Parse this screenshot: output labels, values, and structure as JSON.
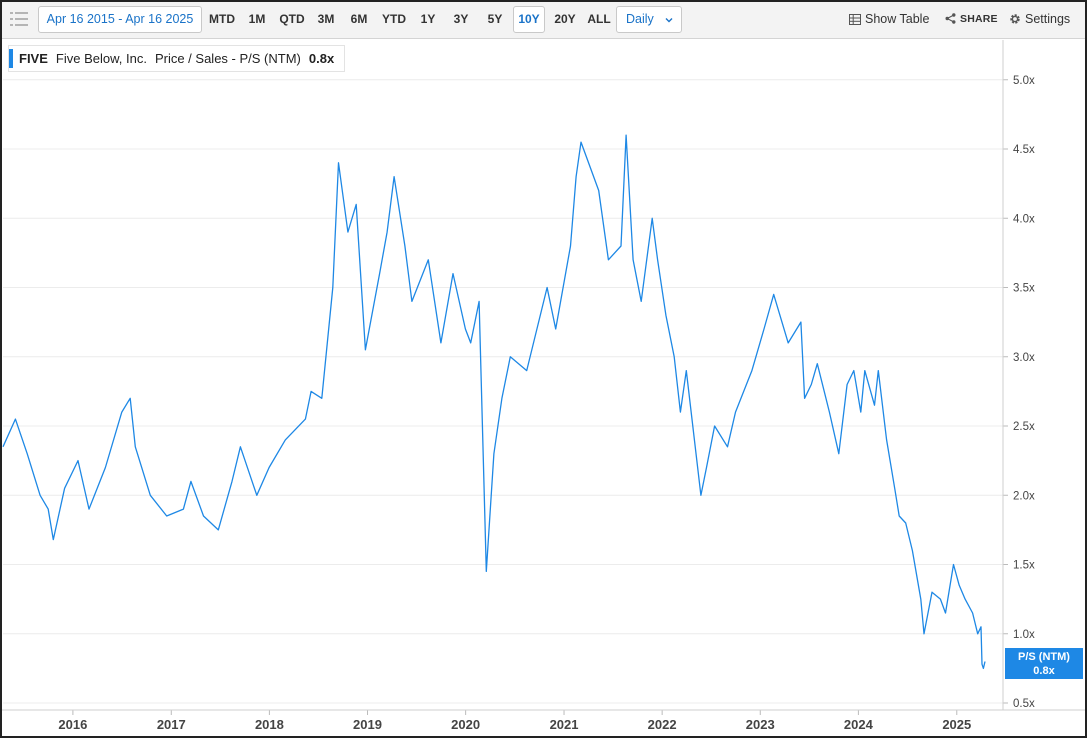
{
  "toolbar": {
    "date_range": "Apr 16 2015 - Apr 16 2025",
    "ranges": [
      "MTD",
      "1M",
      "QTD",
      "3M",
      "6M",
      "YTD",
      "1Y",
      "3Y",
      "5Y",
      "10Y",
      "20Y",
      "ALL"
    ],
    "active_range": "10Y",
    "frequency": "Daily",
    "show_table": "Show Table",
    "share": "SHARE",
    "settings": "Settings",
    "accent_color": "#1a73c8"
  },
  "legend": {
    "ticker": "FIVE",
    "company": "Five Below, Inc.",
    "metric": "Price / Sales - P/S (NTM)",
    "value": "0.8x"
  },
  "end_tag": {
    "label": "P/S (NTM)",
    "value": "0.8x"
  },
  "chart_data": {
    "type": "line",
    "title": "",
    "xlabel": "",
    "ylabel": "",
    "line_color": "#1e88e5",
    "x_ticks": [
      "2016",
      "2017",
      "2018",
      "2019",
      "2020",
      "2021",
      "2022",
      "2023",
      "2024",
      "2025"
    ],
    "y_ticks": [
      "0.5x",
      "1.0x",
      "1.5x",
      "2.0x",
      "2.5x",
      "3.0x",
      "3.5x",
      "4.0x",
      "4.5x",
      "5.0x"
    ],
    "ylim": [
      0.5,
      5.2
    ],
    "xlim": [
      "2015-04-16",
      "2025-04-16"
    ],
    "grid": "horizontal",
    "series": [
      {
        "x": [
          "2015-04-16",
          "2015-06-01",
          "2015-07-15",
          "2015-09-01",
          "2015-10-01",
          "2015-10-20",
          "2015-12-01",
          "2016-01-20",
          "2016-03-01",
          "2016-05-01",
          "2016-07-01",
          "2016-08-01",
          "2016-08-20",
          "2016-10-15",
          "2016-12-15",
          "2017-02-15",
          "2017-03-15",
          "2017-05-01",
          "2017-06-25",
          "2017-08-15",
          "2017-09-15",
          "2017-11-15",
          "2017-12-31",
          "2018-03-01",
          "2018-05-15",
          "2018-06-05",
          "2018-07-15",
          "2018-08-25",
          "2018-09-15",
          "2018-10-20",
          "2018-11-20",
          "2018-12-24",
          "2019-02-15",
          "2019-03-15",
          "2019-04-10",
          "2019-05-20",
          "2019-06-15",
          "2019-08-15",
          "2019-10-01",
          "2019-11-15",
          "2019-12-31",
          "2020-01-20",
          "2020-02-20",
          "2020-03-18",
          "2020-04-15",
          "2020-05-15",
          "2020-06-15",
          "2020-08-15",
          "2020-10-30",
          "2020-12-01",
          "2021-01-25",
          "2021-02-15",
          "2021-03-05",
          "2021-05-10",
          "2021-06-15",
          "2021-08-01",
          "2021-08-20",
          "2021-09-15",
          "2021-10-15",
          "2021-11-25",
          "2021-12-15",
          "2022-01-15",
          "2022-02-15",
          "2022-03-10",
          "2022-04-01",
          "2022-05-25",
          "2022-06-15",
          "2022-07-15",
          "2022-09-01",
          "2022-10-01",
          "2022-12-01",
          "2023-01-15",
          "2023-02-20",
          "2023-03-15",
          "2023-04-15",
          "2023-06-01",
          "2023-06-15",
          "2023-07-10",
          "2023-08-01",
          "2023-09-15",
          "2023-10-20",
          "2023-11-20",
          "2023-12-15",
          "2024-01-10",
          "2024-01-25",
          "2024-03-01",
          "2024-03-15",
          "2024-04-15",
          "2024-05-15",
          "2024-06-01",
          "2024-06-25",
          "2024-07-20",
          "2024-08-20",
          "2024-09-01",
          "2024-10-01",
          "2024-11-01",
          "2024-11-20",
          "2024-12-20",
          "2025-01-10",
          "2025-02-01",
          "2025-03-01",
          "2025-03-20",
          "2025-04-01",
          "2025-04-05",
          "2025-04-10",
          "2025-04-16"
        ],
        "values": [
          2.35,
          2.55,
          2.3,
          2.0,
          1.9,
          1.68,
          2.05,
          2.25,
          1.9,
          2.2,
          2.6,
          2.7,
          2.35,
          2.0,
          1.85,
          1.9,
          2.1,
          1.85,
          1.75,
          2.1,
          2.35,
          2.0,
          2.2,
          2.4,
          2.55,
          2.75,
          2.7,
          3.5,
          4.4,
          3.9,
          4.1,
          3.05,
          3.6,
          3.9,
          4.3,
          3.8,
          3.4,
          3.7,
          3.1,
          3.6,
          3.2,
          3.1,
          3.4,
          1.45,
          2.3,
          2.7,
          3.0,
          2.9,
          3.5,
          3.2,
          3.8,
          4.3,
          4.55,
          4.2,
          3.7,
          3.8,
          4.6,
          3.7,
          3.4,
          4.0,
          3.7,
          3.3,
          3.0,
          2.6,
          2.9,
          2.0,
          2.2,
          2.5,
          2.35,
          2.6,
          2.9,
          3.2,
          3.45,
          3.3,
          3.1,
          3.25,
          2.7,
          2.8,
          2.95,
          2.6,
          2.3,
          2.8,
          2.9,
          2.6,
          2.9,
          2.65,
          2.9,
          2.4,
          2.05,
          1.85,
          1.8,
          1.6,
          1.25,
          1.0,
          1.3,
          1.25,
          1.15,
          1.5,
          1.35,
          1.25,
          1.15,
          1.0,
          1.05,
          0.78,
          0.75,
          0.8
        ]
      }
    ]
  }
}
